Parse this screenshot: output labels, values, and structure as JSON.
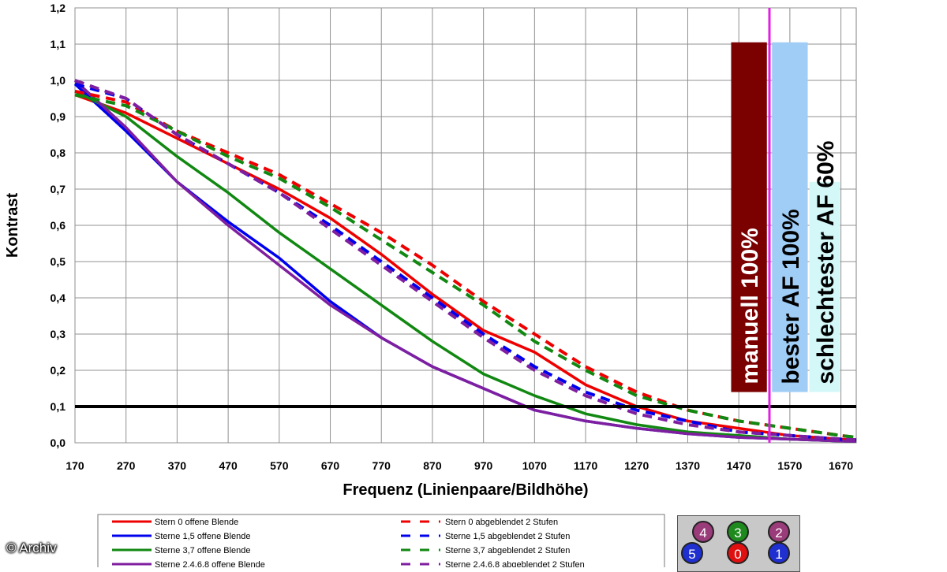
{
  "copyright": "© Archiv",
  "chart_data": {
    "type": "line",
    "title": "",
    "xlabel": "Frequenz (Linienpaare/Bildhöhe)",
    "ylabel": "Kontrast",
    "xlim": [
      170,
      1700
    ],
    "ylim": [
      0,
      1.2
    ],
    "xticks": [
      "170",
      "270",
      "370",
      "470",
      "570",
      "670",
      "770",
      "870",
      "970",
      "1070",
      "1170",
      "1270",
      "1370",
      "1470",
      "1570",
      "1670"
    ],
    "yticks": [
      "0,0",
      "0,1",
      "0,2",
      "0,3",
      "0,4",
      "0,5",
      "0,6",
      "0,7",
      "0,8",
      "0,9",
      "1,0",
      "1,1",
      "1,2"
    ],
    "grid": true,
    "threshold_line": {
      "y": 0.1,
      "color": "#000000"
    },
    "vertical_marker": {
      "x": 1530,
      "color": "#e020e0"
    },
    "bars": [
      {
        "label": "manuell 100%",
        "x_from": 1455,
        "x_to": 1525,
        "y_from": 0.14,
        "y_to": 1.105,
        "color": "#7b0000",
        "text_color": "#ffffff"
      },
      {
        "label": "bester AF 100%",
        "x_from": 1535,
        "x_to": 1605,
        "y_from": 0.14,
        "y_to": 1.105,
        "color": "#9fcdf5",
        "text_color": "#000000"
      },
      {
        "label": "schlechtester AF 60%",
        "x_from": 1608,
        "x_to": 1668,
        "y_from": 0.14,
        "y_to": 0.72,
        "color": "#d4f8f8",
        "text_color": "#000000"
      }
    ],
    "series": [
      {
        "name": "Stern 0 offene Blende",
        "color": "#ee0000",
        "dash": false,
        "x": [
          170,
          270,
          370,
          470,
          570,
          670,
          770,
          870,
          970,
          1070,
          1170,
          1270,
          1370,
          1470,
          1570,
          1670,
          1700
        ],
        "y": [
          0.96,
          0.91,
          0.84,
          0.77,
          0.7,
          0.62,
          0.52,
          0.41,
          0.31,
          0.25,
          0.16,
          0.1,
          0.06,
          0.04,
          0.02,
          0.01,
          0.008
        ]
      },
      {
        "name": "Sterne 1,5 offene Blende",
        "color": "#0000ee",
        "dash": false,
        "x": [
          170,
          270,
          370,
          470,
          570,
          670,
          770,
          870,
          970,
          1070,
          1170,
          1270,
          1370,
          1470,
          1570,
          1670,
          1700
        ],
        "y": [
          0.99,
          0.86,
          0.72,
          0.61,
          0.51,
          0.39,
          0.29,
          0.21,
          0.15,
          0.09,
          0.06,
          0.04,
          0.025,
          0.015,
          0.01,
          0.005,
          0.004
        ]
      },
      {
        "name": "Sterne 3,7 offene Blende",
        "color": "#118811",
        "dash": false,
        "x": [
          170,
          270,
          370,
          470,
          570,
          670,
          770,
          870,
          970,
          1070,
          1170,
          1270,
          1370,
          1470,
          1570,
          1670,
          1700
        ],
        "y": [
          0.97,
          0.9,
          0.79,
          0.69,
          0.58,
          0.48,
          0.38,
          0.28,
          0.19,
          0.13,
          0.08,
          0.05,
          0.03,
          0.02,
          0.01,
          0.005,
          0.004
        ]
      },
      {
        "name": "Sterne 2,4,6,8 offene Blende",
        "color": "#7f1f9f",
        "dash": false,
        "x": [
          170,
          270,
          370,
          470,
          570,
          670,
          770,
          870,
          970,
          1070,
          1170,
          1270,
          1370,
          1470,
          1570,
          1670,
          1700
        ],
        "y": [
          1.0,
          0.87,
          0.72,
          0.6,
          0.49,
          0.38,
          0.29,
          0.21,
          0.15,
          0.09,
          0.06,
          0.04,
          0.025,
          0.015,
          0.01,
          0.005,
          0.004
        ]
      },
      {
        "name": "Stern 0 abgeblendet 2 Stufen",
        "color": "#ee0000",
        "dash": true,
        "x": [
          170,
          270,
          370,
          470,
          570,
          670,
          770,
          870,
          970,
          1070,
          1170,
          1270,
          1370,
          1470,
          1570,
          1670,
          1700
        ],
        "y": [
          0.97,
          0.94,
          0.86,
          0.8,
          0.74,
          0.66,
          0.58,
          0.49,
          0.39,
          0.3,
          0.21,
          0.14,
          0.09,
          0.06,
          0.04,
          0.02,
          0.015
        ]
      },
      {
        "name": "Sterne 1,5 abgeblendet 2 Stufen",
        "color": "#0000ee",
        "dash": true,
        "x": [
          170,
          270,
          370,
          470,
          570,
          670,
          770,
          870,
          970,
          1070,
          1170,
          1270,
          1370,
          1470,
          1570,
          1670,
          1700
        ],
        "y": [
          0.99,
          0.95,
          0.85,
          0.77,
          0.69,
          0.6,
          0.5,
          0.4,
          0.3,
          0.21,
          0.14,
          0.09,
          0.06,
          0.03,
          0.02,
          0.01,
          0.008
        ]
      },
      {
        "name": "Sterne 3,7 abgeblendet 2 Stufen",
        "color": "#118811",
        "dash": true,
        "x": [
          170,
          270,
          370,
          470,
          570,
          670,
          770,
          870,
          970,
          1070,
          1170,
          1270,
          1370,
          1470,
          1570,
          1670,
          1700
        ],
        "y": [
          0.96,
          0.93,
          0.86,
          0.79,
          0.73,
          0.65,
          0.56,
          0.47,
          0.38,
          0.28,
          0.2,
          0.13,
          0.09,
          0.06,
          0.04,
          0.02,
          0.015
        ]
      },
      {
        "name": "Sterne 2,4,6,8 abgeblendet 2 Stufen",
        "color": "#7f1f9f",
        "dash": true,
        "x": [
          170,
          270,
          370,
          470,
          570,
          670,
          770,
          870,
          970,
          1070,
          1170,
          1270,
          1370,
          1470,
          1570,
          1670,
          1700
        ],
        "y": [
          1.0,
          0.95,
          0.85,
          0.77,
          0.69,
          0.59,
          0.49,
          0.39,
          0.29,
          0.2,
          0.13,
          0.08,
          0.05,
          0.03,
          0.02,
          0.01,
          0.008
        ]
      }
    ],
    "legend": {
      "placement": "bottom",
      "entries": [
        "Stern 0 offene Blende",
        "Sterne 1,5 offene Blende",
        "Sterne 3,7 offene Blende",
        "Sterne 2,4,6,8 offene Blende",
        "Stern 0 abgeblendet 2 Stufen",
        "Sterne 1,5 abgeblendet 2 Stufen",
        "Sterne 3,7 abgeblendet 2 Stufen",
        "Sterne 2,4,6,8 abgeblendet 2 Stufen"
      ]
    },
    "markers": [
      {
        "label": "4",
        "color": "#9a3b7a"
      },
      {
        "label": "3",
        "color": "#1e8a1e"
      },
      {
        "label": "2",
        "color": "#9a3b7a"
      },
      {
        "label": "5",
        "color": "#1f2fd0"
      },
      {
        "label": "0",
        "color": "#e01010"
      },
      {
        "label": "1",
        "color": "#1f2fd0"
      }
    ]
  }
}
